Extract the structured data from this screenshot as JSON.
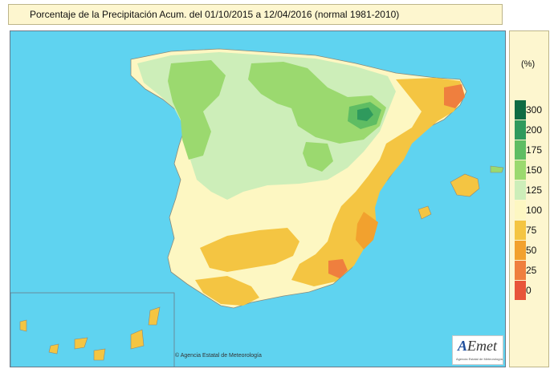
{
  "title": "Porcentaje de la Precipitación Acum. del 01/10/2015 a  12/04/2016  (normal 1981-2010)",
  "legend": {
    "unit": "(%)",
    "classes": [
      {
        "label": "300",
        "color": "#0e6b43"
      },
      {
        "label": "200",
        "color": "#2f9a5d"
      },
      {
        "label": "175",
        "color": "#5fbd63"
      },
      {
        "label": "150",
        "color": "#9bd96f"
      },
      {
        "label": "125",
        "color": "#cdeeb9"
      },
      {
        "label": "100",
        "color": "#fdf7c2"
      },
      {
        "label": "75",
        "color": "#f4c542"
      },
      {
        "label": "50",
        "color": "#f2a12e"
      },
      {
        "label": "25",
        "color": "#ef7f3e"
      },
      {
        "label": "0",
        "color": "#e8553a"
      }
    ]
  },
  "copyright": "© Agencia Estatal de Meteorología",
  "logo": {
    "accent": "A",
    "rest": "Emet",
    "subtitle": "Agencia Estatal de Meteorología"
  },
  "colors": {
    "sea": "#5fd3f0",
    "land_normal": "#fdf7c2"
  }
}
